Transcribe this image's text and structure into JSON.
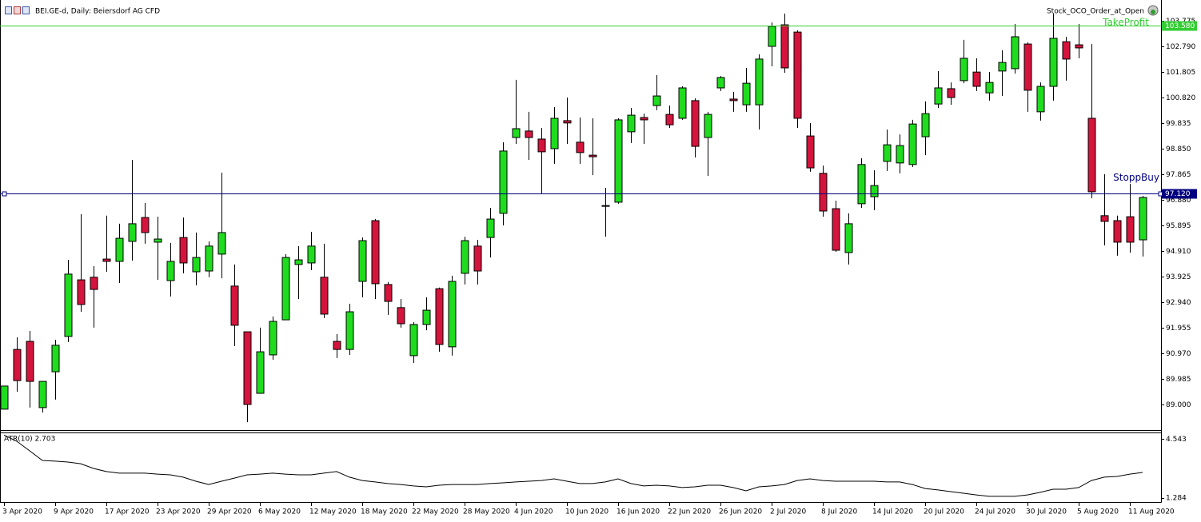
{
  "chart_data": {
    "type": "candlestick",
    "title": "BEI.GE-d, Daily:  Beiersdorf AG CFD",
    "expert": "Stock_OCO_Order_at_Open",
    "up_color": "#1fdc1f",
    "down_color": "#d4143c",
    "ylim": [
      88.015,
      104.575
    ],
    "yticks": [
      103.775,
      {
        "value": 102.79,
        "label": "102.790"
      },
      101.805,
      {
        "value": 100.82,
        "label": "100.820"
      },
      99.835,
      {
        "value": 98.85,
        "label": "98.850"
      },
      97.865,
      {
        "value": 96.88,
        "label": "96.880"
      },
      95.895,
      {
        "value": 94.91,
        "label": "94.910"
      },
      93.925,
      {
        "value": 92.94,
        "label": "92.940"
      },
      91.955,
      {
        "value": 90.97,
        "label": "90.970"
      },
      89.985,
      {
        "value": 89,
        "label": "89.000"
      }
    ],
    "categories": [
      "3 Apr 2020",
      null,
      null,
      null,
      "9 Apr 2020",
      null,
      null,
      null,
      "17 Apr 2020",
      null,
      null,
      null,
      "23 Apr 2020",
      null,
      null,
      null,
      "29 Apr 2020",
      null,
      null,
      null,
      "6 May 2020",
      null,
      null,
      null,
      "12 May 2020",
      null,
      null,
      null,
      "18 May 2020",
      null,
      null,
      null,
      "22 May 2020",
      null,
      null,
      null,
      "28 May 2020",
      null,
      null,
      null,
      "4 Jun 2020",
      null,
      null,
      null,
      "10 Jun 2020",
      null,
      null,
      null,
      "16 Jun 2020",
      null,
      null,
      null,
      "22 Jun 2020",
      null,
      null,
      null,
      "26 Jun 2020",
      null,
      null,
      null,
      "2 Jul 2020",
      null,
      null,
      null,
      "8 Jul 2020",
      null,
      null,
      null,
      "14 Jul 2020",
      null,
      null,
      null,
      "20 Jul 2020",
      null,
      null,
      null,
      "24 Jul 2020",
      null,
      null,
      null,
      "30 Jul 2020",
      null,
      null,
      null,
      "5 Aug 2020",
      null,
      null,
      null,
      "11 Aug 2020",
      null
    ],
    "open": [
      88.82,
      91.12,
      91.43,
      88.88,
      90.26,
      91.62,
      93.8,
      93.9,
      94.6,
      94.51,
      95.28,
      96.2,
      95.25,
      93.77,
      95.43,
      94.11,
      94.14,
      94.79,
      93.56,
      91.8,
      89.43,
      90.91,
      92.26,
      94.39,
      94.45,
      93.9,
      91.43,
      91.12,
      93.74,
      96.08,
      93.62,
      92.73,
      90.88,
      92.08,
      93.46,
      91.22,
      94.05,
      95.1,
      95.43,
      96.36,
      99.28,
      99.53,
      99.22,
      98.85,
      99.93,
      99.1,
      98.6,
      96.66,
      96.79,
      99.5,
      100.05,
      100.51,
      100.17,
      100.02,
      100.7,
      99.28,
      101.19,
      100.76,
      100.54,
      100.54,
      102.79,
      103.62,
      103.34,
      99.34,
      97.9,
      96.54,
      94.85,
      96.73,
      97.0,
      98.36,
      98.3,
      98.24,
      99.31,
      100.57,
      101.16,
      101.47,
      101.8,
      101.0,
      101.84,
      101.93,
      102.88,
      100.27,
      101.25,
      102.97,
      102.85,
      100.02,
      96.27,
      96.08,
      96.23,
      95.34
    ],
    "high": [
      89.71,
      91.59,
      91.83,
      89.89,
      91.49,
      94.57,
      96.33,
      94.33,
      96.27,
      95.96,
      98.42,
      96.76,
      96.23,
      95.22,
      96.2,
      95.62,
      95.28,
      97.93,
      94.39,
      91.8,
      91.96,
      92.39,
      94.79,
      95.1,
      95.65,
      95.19,
      91.71,
      92.88,
      95.43,
      96.14,
      93.71,
      93.06,
      92.17,
      93.13,
      93.5,
      93.96,
      95.46,
      95.34,
      96.57,
      99.1,
      101.5,
      100.27,
      99.65,
      100.45,
      100.82,
      100.05,
      100.02,
      97.34,
      100.02,
      100.42,
      100.2,
      101.68,
      100.51,
      101.25,
      100.79,
      100.27,
      101.65,
      101.04,
      101.96,
      102.48,
      103.71,
      104.05,
      103.41,
      99.84,
      98.2,
      96.85,
      96.36,
      98.48,
      98.02,
      99.59,
      99.4,
      99.96,
      100.67,
      101.84,
      101.4,
      103.04,
      102.33,
      101.8,
      102.64,
      103.65,
      102.94,
      101.4,
      104.05,
      103.16,
      103.65,
      102.88,
      97.87,
      96.27,
      97.5,
      97.03
    ],
    "low": [
      88.82,
      89.49,
      88.88,
      88.69,
      89.19,
      91.4,
      92.57,
      91.96,
      94.11,
      93.68,
      94.54,
      95.19,
      93.8,
      93.16,
      94.05,
      93.59,
      93.9,
      93.86,
      91.25,
      88.32,
      89.43,
      90.72,
      92.26,
      93.06,
      94.17,
      92.33,
      90.79,
      90.91,
      93.13,
      93.06,
      92.45,
      91.96,
      90.6,
      91.86,
      91.03,
      90.88,
      93.62,
      93.62,
      94.66,
      95.9,
      99.03,
      98.42,
      97.13,
      98.27,
      99.03,
      98.27,
      97.83,
      95.46,
      96.73,
      99.07,
      99.03,
      100.33,
      99.65,
      99.96,
      98.51,
      97.8,
      101.07,
      100.27,
      100.27,
      99.59,
      102.02,
      101.77,
      99.65,
      97.96,
      96.23,
      94.88,
      94.39,
      96.57,
      96.48,
      97.99,
      97.9,
      98.14,
      98.6,
      100.42,
      100.54,
      101.37,
      101.07,
      100.7,
      100.88,
      101.74,
      100.27,
      99.93,
      100.7,
      101.47,
      102.33,
      96.94,
      95.13,
      94.73,
      94.85,
      94.7
    ],
    "close": [
      89.71,
      89.92,
      89.89,
      89.89,
      91.28,
      94.02,
      92.85,
      93.43,
      94.51,
      95.4,
      95.96,
      95.62,
      95.37,
      94.51,
      94.45,
      94.66,
      95.1,
      95.62,
      92.05,
      89.0,
      91.03,
      92.2,
      94.66,
      94.57,
      95.1,
      92.48,
      91.12,
      92.57,
      95.31,
      93.65,
      92.97,
      92.11,
      92.08,
      92.63,
      91.31,
      93.74,
      95.31,
      94.14,
      96.14,
      98.76,
      99.62,
      99.28,
      98.73,
      100.02,
      99.84,
      98.7,
      98.54,
      96.66,
      99.96,
      100.14,
      99.96,
      100.88,
      99.77,
      101.19,
      98.94,
      100.17,
      101.59,
      100.7,
      101.37,
      102.3,
      103.56,
      101.96,
      100.02,
      98.11,
      96.45,
      94.94,
      95.96,
      98.24,
      97.43,
      99.0,
      98.97,
      99.8,
      100.2,
      101.19,
      100.82,
      102.33,
      101.25,
      101.4,
      102.17,
      103.16,
      101.1,
      101.25,
      103.1,
      102.3,
      102.73,
      97.19,
      96.05,
      95.25,
      95.25,
      96.97
    ],
    "levels": [
      {
        "name": "TakeProfit",
        "value": 103.58,
        "label": "103.580",
        "color": "#32cd32",
        "text_color": "#32cd32"
      },
      {
        "name": "StoppBuy",
        "value": 97.12,
        "label": "97.120",
        "color": "#000080",
        "text_color": "#000080"
      }
    ],
    "indicator": {
      "type": "line",
      "label": "ATR(10) 2.703",
      "color": "#000000",
      "ylim": [
        1.078,
        4.894
      ],
      "yticks": [
        4.543,
        1.284
      ],
      "values": [
        4.75,
        4.41,
        3.89,
        3.36,
        3.32,
        3.27,
        3.18,
        2.92,
        2.75,
        2.66,
        2.66,
        2.66,
        2.61,
        2.57,
        2.44,
        2.22,
        2.04,
        2.22,
        2.39,
        2.57,
        2.61,
        2.66,
        2.61,
        2.57,
        2.57,
        2.66,
        2.75,
        2.44,
        2.26,
        2.18,
        2.09,
        2.04,
        1.96,
        1.91,
        2.0,
        2.04,
        2.04,
        2.04,
        2.09,
        2.13,
        2.18,
        2.22,
        2.26,
        2.35,
        2.22,
        2.09,
        2.09,
        2.18,
        2.35,
        2.09,
        1.96,
        2.0,
        1.96,
        1.87,
        1.91,
        2.0,
        2.0,
        1.87,
        1.69,
        1.91,
        1.96,
        2.04,
        2.26,
        2.35,
        2.26,
        2.22,
        2.22,
        2.22,
        2.22,
        2.18,
        2.18,
        2.04,
        1.82,
        1.74,
        1.65,
        1.56,
        1.47,
        1.39,
        1.39,
        1.39,
        1.47,
        1.61,
        1.78,
        1.78,
        1.87,
        2.26,
        2.44,
        2.48,
        2.61,
        2.703
      ]
    }
  }
}
